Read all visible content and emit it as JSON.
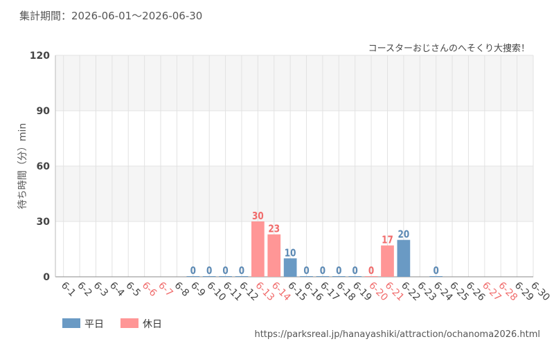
{
  "header": {
    "period": "集計期間：2026-06-01～2026-06-30",
    "credit": "コースターおじさんのへそくり大捜索！",
    "url": "https://parksreal.jp/hanayashiki/attraction/ochanoma2026.html"
  },
  "colors": {
    "weekday": "#6a9ac4",
    "holiday": "#ff9696",
    "weekday_label": "#5b89b4",
    "holiday_label": "#f06b6b",
    "axis_text": "#444444",
    "grid": "#e2e2e2",
    "band": "#f5f5f5"
  },
  "legend": [
    {
      "label": "平日",
      "color": "#6a9ac4"
    },
    {
      "label": "休日",
      "color": "#ff9696"
    }
  ],
  "chart_data": {
    "type": "bar",
    "ylabel": "待ち時間（分）min",
    "ylim": [
      0,
      120
    ],
    "yticks": [
      0,
      30,
      60,
      90,
      120
    ],
    "grid": true,
    "legend_position": "bottom-left",
    "categories": [
      "6-1",
      "6-2",
      "6-3",
      "6-4",
      "6-5",
      "6-6",
      "6-7",
      "6-8",
      "6-9",
      "6-10",
      "6-11",
      "6-12",
      "6-13",
      "6-14",
      "6-15",
      "6-16",
      "6-17",
      "6-18",
      "6-19",
      "6-20",
      "6-21",
      "6-22",
      "6-23",
      "6-24",
      "6-25",
      "6-26",
      "6-27",
      "6-28",
      "6-29",
      "6-30"
    ],
    "day_type": [
      "weekday",
      "weekday",
      "weekday",
      "weekday",
      "weekday",
      "holiday",
      "holiday",
      "weekday",
      "weekday",
      "weekday",
      "weekday",
      "weekday",
      "holiday",
      "holiday",
      "weekday",
      "weekday",
      "weekday",
      "weekday",
      "weekday",
      "holiday",
      "holiday",
      "weekday",
      "weekday",
      "weekday",
      "weekday",
      "weekday",
      "holiday",
      "holiday",
      "weekday",
      "weekday"
    ],
    "series": [
      {
        "name": "平日",
        "values": [
          null,
          null,
          null,
          null,
          null,
          null,
          null,
          null,
          0,
          0,
          0,
          0,
          null,
          null,
          10,
          0,
          0,
          0,
          0,
          null,
          null,
          20,
          null,
          0,
          null,
          null,
          null,
          null,
          null,
          null
        ]
      },
      {
        "name": "休日",
        "values": [
          null,
          null,
          null,
          null,
          null,
          null,
          null,
          null,
          null,
          null,
          null,
          null,
          30,
          23,
          null,
          null,
          null,
          null,
          null,
          0,
          17,
          null,
          null,
          null,
          null,
          null,
          null,
          null,
          null,
          null
        ]
      }
    ]
  }
}
